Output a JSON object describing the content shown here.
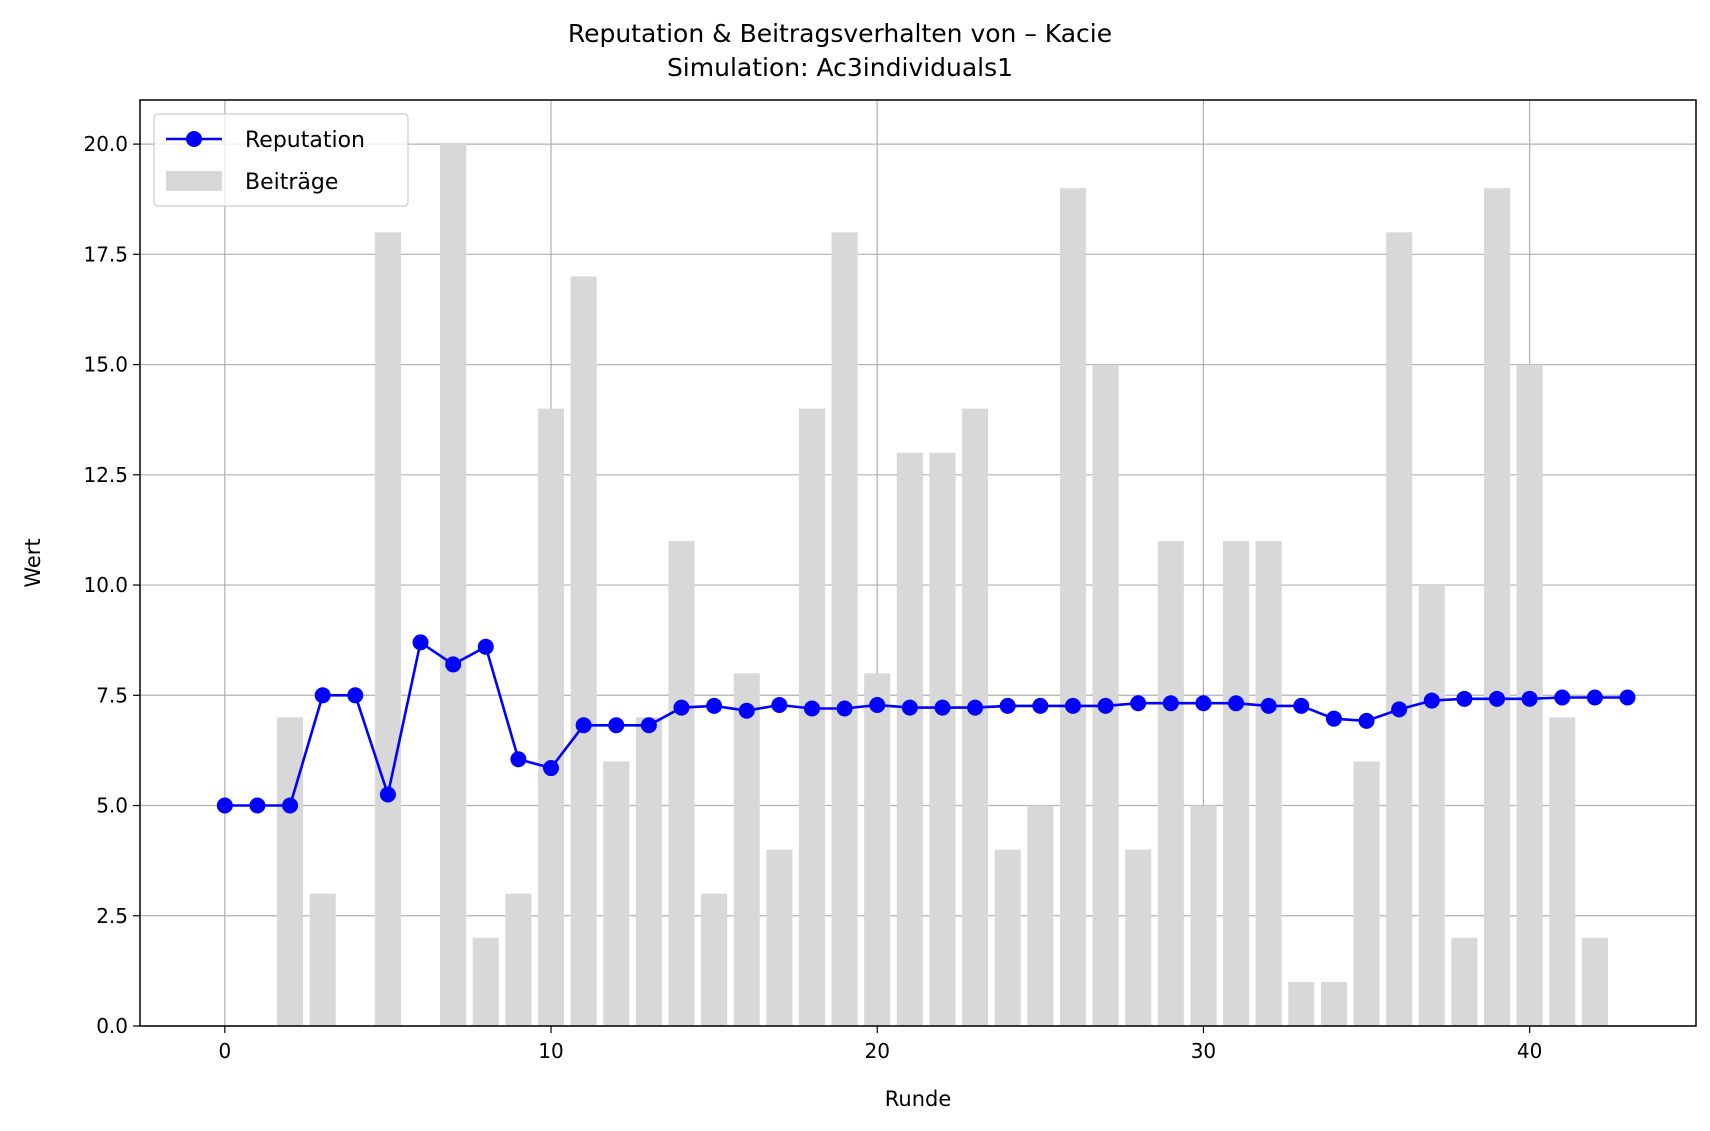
{
  "chart_data": {
    "type": "bar+line",
    "title": "Reputation & Beitragsverhalten von – Kacie",
    "subtitle": "Simulation: Ac3individuals1",
    "xlabel": "Runde",
    "ylabel": "Wert",
    "xlim": [
      -2.6,
      45.1
    ],
    "ylim": [
      0,
      21
    ],
    "xticks": [
      0,
      10,
      20,
      30,
      40
    ],
    "yticks": [
      "0.0",
      "2.5",
      "5.0",
      "7.5",
      "10.0",
      "12.5",
      "15.0",
      "17.5",
      "20.0"
    ],
    "grid": true,
    "legend_position": "top-left",
    "x": [
      0,
      1,
      2,
      3,
      4,
      5,
      6,
      7,
      8,
      9,
      10,
      11,
      12,
      13,
      14,
      15,
      16,
      17,
      18,
      19,
      20,
      21,
      22,
      23,
      24,
      25,
      26,
      27,
      28,
      29,
      30,
      31,
      32,
      33,
      34,
      35,
      36,
      37,
      38,
      39,
      40,
      41,
      42,
      43
    ],
    "series": [
      {
        "name": "Reputation",
        "kind": "line",
        "color": "#0000ff",
        "marker": "circle",
        "values": [
          5.0,
          5.0,
          5.0,
          7.5,
          7.5,
          5.25,
          8.7,
          8.2,
          8.6,
          6.05,
          5.85,
          6.82,
          6.82,
          6.82,
          7.22,
          7.26,
          7.15,
          7.28,
          7.2,
          7.2,
          7.28,
          7.22,
          7.22,
          7.22,
          7.26,
          7.26,
          7.26,
          7.26,
          7.32,
          7.32,
          7.32,
          7.32,
          7.26,
          7.26,
          6.97,
          6.92,
          7.18,
          7.38,
          7.42,
          7.42,
          7.42,
          7.45,
          7.45,
          7.45
        ]
      },
      {
        "name": "Beiträge",
        "kind": "bar",
        "color": "#d8d8d8",
        "values": [
          0,
          0,
          7,
          3,
          0,
          18,
          0,
          20,
          2,
          3,
          14,
          17,
          6,
          7,
          11,
          3,
          8,
          4,
          14,
          18,
          8,
          13,
          13,
          14,
          4,
          5,
          19,
          15,
          4,
          11,
          5,
          11,
          11,
          1,
          1,
          6,
          18,
          10,
          2,
          19,
          15,
          7,
          2,
          0
        ]
      }
    ]
  }
}
